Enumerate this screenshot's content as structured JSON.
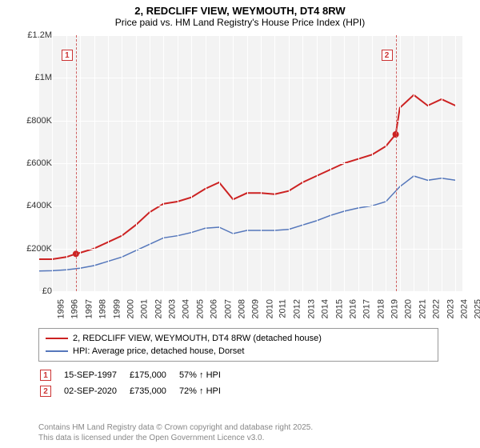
{
  "title": "2, REDCLIFF VIEW, WEYMOUTH, DT4 8RW",
  "subtitle": "Price paid vs. HM Land Registry's House Price Index (HPI)",
  "chart": {
    "type": "line",
    "background_color": "#f3f3f3",
    "grid_color": "#ffffff",
    "xlim": [
      1995,
      2025.5
    ],
    "ylim": [
      0,
      1200000
    ],
    "ytick_step": 200000,
    "ytick_labels": [
      "£0",
      "£200K",
      "£400K",
      "£600K",
      "£800K",
      "£1M",
      "£1.2M"
    ],
    "xtick_step": 1,
    "xtick_labels": [
      "1995",
      "1996",
      "1997",
      "1998",
      "1999",
      "2000",
      "2001",
      "2002",
      "2003",
      "2004",
      "2005",
      "2006",
      "2007",
      "2008",
      "2009",
      "2010",
      "2011",
      "2012",
      "2013",
      "2014",
      "2015",
      "2016",
      "2017",
      "2018",
      "2019",
      "2020",
      "2021",
      "2022",
      "2023",
      "2024",
      "2025"
    ],
    "series": [
      {
        "name": "price_paid",
        "label": "2, REDCLIFF VIEW, WEYMOUTH, DT4 8RW (detached house)",
        "color": "#cc2222",
        "line_width": 2,
        "x": [
          1995,
          1996,
          1997,
          1997.7,
          1998,
          1999,
          2000,
          2001,
          2002,
          2003,
          2004,
          2005,
          2006,
          2007,
          2008,
          2009,
          2010,
          2011,
          2012,
          2013,
          2014,
          2015,
          2016,
          2017,
          2018,
          2019,
          2020,
          2020.7,
          2021,
          2022,
          2023,
          2024,
          2025
        ],
        "y": [
          150000,
          150000,
          160000,
          175000,
          180000,
          200000,
          230000,
          260000,
          310000,
          370000,
          410000,
          420000,
          440000,
          480000,
          510000,
          430000,
          460000,
          460000,
          455000,
          470000,
          510000,
          540000,
          570000,
          600000,
          620000,
          640000,
          680000,
          735000,
          860000,
          920000,
          870000,
          900000,
          870000
        ]
      },
      {
        "name": "hpi",
        "label": "HPI: Average price, detached house, Dorset",
        "color": "#5577bb",
        "line_width": 1.5,
        "x": [
          1995,
          1996,
          1997,
          1998,
          1999,
          2000,
          2001,
          2002,
          2003,
          2004,
          2005,
          2006,
          2007,
          2008,
          2009,
          2010,
          2011,
          2012,
          2013,
          2014,
          2015,
          2016,
          2017,
          2018,
          2019,
          2020,
          2021,
          2022,
          2023,
          2024,
          2025
        ],
        "y": [
          95000,
          96000,
          100000,
          108000,
          120000,
          140000,
          160000,
          190000,
          220000,
          250000,
          260000,
          275000,
          295000,
          300000,
          270000,
          285000,
          285000,
          285000,
          290000,
          310000,
          330000,
          355000,
          375000,
          390000,
          400000,
          420000,
          490000,
          540000,
          520000,
          530000,
          520000
        ]
      }
    ],
    "markers": [
      {
        "num": "1",
        "x": 1997.7,
        "y": 175000,
        "color": "#cc2222"
      },
      {
        "num": "2",
        "x": 2020.7,
        "y": 735000,
        "color": "#cc2222"
      }
    ]
  },
  "events": [
    {
      "num": "1",
      "date": "15-SEP-1997",
      "price": "£175,000",
      "delta": "57% ↑ HPI"
    },
    {
      "num": "2",
      "date": "02-SEP-2020",
      "price": "£735,000",
      "delta": "72% ↑ HPI"
    }
  ],
  "footer": {
    "line1": "Contains HM Land Registry data © Crown copyright and database right 2025.",
    "line2": "This data is licensed under the Open Government Licence v3.0."
  }
}
